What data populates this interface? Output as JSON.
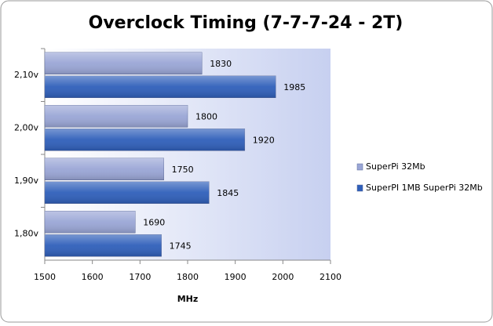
{
  "chart_data": {
    "type": "hbar",
    "title": "Overclock Timing (7-7-7-24 - 2T)",
    "x_label": "MHz",
    "categories": [
      "2,10v",
      "2,00v",
      "1,90v",
      "1,80v"
    ],
    "series": [
      {
        "name": "SuperPi 32Mb",
        "color": "#9aa6d6",
        "values": [
          1830,
          1800,
          1750,
          1690
        ]
      },
      {
        "name": "SuperPI 1MB SuperPi 32Mb",
        "color": "#2f5fba",
        "values": [
          1985,
          1920,
          1845,
          1745
        ]
      }
    ],
    "xlim": [
      1500,
      2100
    ],
    "xticks": [
      1500,
      1600,
      1700,
      1800,
      1900,
      2000,
      2100
    ],
    "legend": "right"
  }
}
